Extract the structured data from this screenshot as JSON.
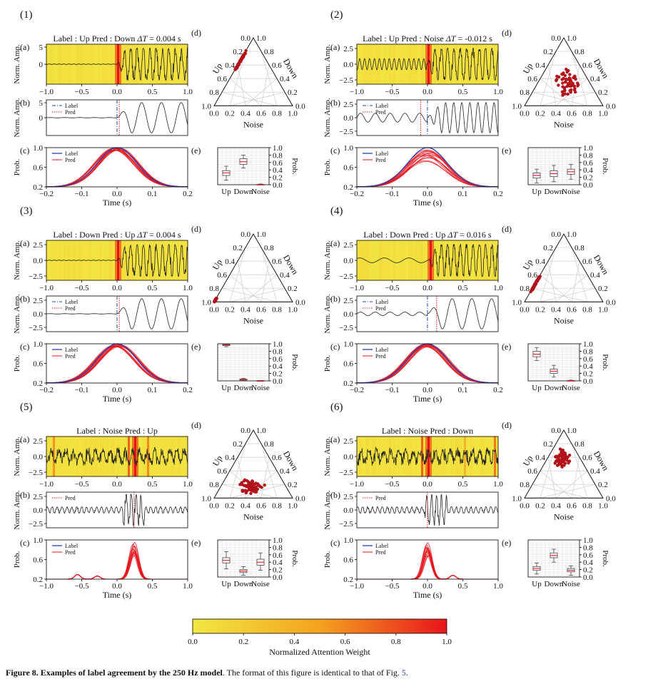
{
  "caption": {
    "bold": "Figure 8.  Examples of label agreement by the 250 Hz model",
    "rest": ". The format of this figure is identical to that of Fig. ",
    "ref": "5",
    "end": "."
  },
  "colorbar": {
    "label": "Normalized Attention Weight",
    "ticks": [
      "0.0",
      "0.2",
      "0.4",
      "0.6",
      "0.8",
      "1.0"
    ],
    "colors": [
      "#f2e842",
      "#f4a21f",
      "#e8141c"
    ]
  },
  "labels": {
    "norm_amp": "Norm. Amp.",
    "prob": "Prob.",
    "time": "Time (s)",
    "up": "Up",
    "down": "Down",
    "noise": "Noise",
    "label": "Label",
    "pred": "Pred"
  },
  "tern_ticks": [
    "0.0",
    "0.2",
    "0.4",
    "0.6",
    "0.8",
    "1.0"
  ],
  "box_ticks": [
    "0.0",
    "0.2",
    "0.4",
    "0.6",
    "0.8",
    "1.0"
  ],
  "chart_data": [
    {
      "id": "(1)",
      "type": "composite",
      "title": "Label : Up  Pred : Down  ",
      "dt_label": "ΔT",
      "dt_value": " = 0.004 s",
      "a": {
        "xlim": [
          -1.0,
          1.0
        ],
        "xticks": [
          "−1.0",
          "−0.5",
          "0.0",
          "0.5",
          "1.0"
        ],
        "yticks": [
          "5",
          "0"
        ],
        "ylim": [
          -5,
          5
        ]
      },
      "b": {
        "yticks": [
          "5",
          "0"
        ],
        "label_t": 0.0,
        "pred_t": 0.004
      },
      "c": {
        "xlim": [
          -0.2,
          0.2
        ],
        "xticks": [
          "−0.2",
          "−0.1",
          "0.0",
          "0.1",
          "0.2"
        ],
        "yticks": [
          "1.0",
          "0.8",
          "0.6",
          "0.4",
          "0.2",
          "0.0"
        ]
      },
      "legend_b": true,
      "legend_c": true,
      "e": {
        "Up": {
          "q1": 0.25,
          "med": 0.32,
          "q3": 0.38,
          "lo": 0.12,
          "hi": 0.5
        },
        "Down": {
          "q1": 0.55,
          "med": 0.62,
          "q3": 0.7,
          "lo": 0.45,
          "hi": 0.8
        },
        "Noise": {
          "q1": 0.0,
          "med": 0.005,
          "q3": 0.01,
          "lo": 0.0,
          "hi": 0.02
        }
      }
    },
    {
      "id": "(2)",
      "type": "composite",
      "title": "Label : Up  Pred : Noise  ",
      "dt_label": "ΔT",
      "dt_value": " = -0.012 s",
      "a": {
        "xlim": [
          -1.0,
          1.0
        ],
        "xticks": [
          "−1.0",
          "−0.5",
          "0.0",
          "0.5",
          "1.0"
        ],
        "yticks": [
          "2.5",
          "0.0",
          "−2.5"
        ],
        "ylim": [
          -4,
          4
        ]
      },
      "b": {
        "yticks": [
          "2.5",
          "0.0",
          "−2.5"
        ],
        "label_t": 0.0,
        "pred_t": -0.012
      },
      "c": {
        "xlim": [
          -0.2,
          0.2
        ],
        "xticks": [
          "−0.2",
          "−0.1",
          "0.0",
          "0.1",
          "0.2"
        ],
        "yticks": [
          "1.0",
          "0.8",
          "0.6",
          "0.4",
          "0.2",
          "0.0"
        ]
      },
      "legend_b": true,
      "legend_c": true,
      "e": {
        "Up": {
          "q1": 0.18,
          "med": 0.25,
          "q3": 0.32,
          "lo": 0.05,
          "hi": 0.42
        },
        "Down": {
          "q1": 0.22,
          "med": 0.3,
          "q3": 0.38,
          "lo": 0.08,
          "hi": 0.52
        },
        "Noise": {
          "q1": 0.28,
          "med": 0.35,
          "q3": 0.42,
          "lo": 0.15,
          "hi": 0.55
        }
      }
    },
    {
      "id": "(3)",
      "type": "composite",
      "title": "Label : Down  Pred : Up  ",
      "dt_label": "ΔT",
      "dt_value": " = 0.004 s",
      "a": {
        "xlim": [
          -1.0,
          1.0
        ],
        "xticks": [
          "−1.0",
          "−0.5",
          "0.0",
          "0.5",
          "1.0"
        ],
        "yticks": [
          "2.5",
          "0.0",
          "−2.5"
        ],
        "ylim": [
          -4,
          4
        ]
      },
      "b": {
        "yticks": [
          "2.5",
          "0.0",
          "−2.5"
        ],
        "label_t": 0.0,
        "pred_t": 0.004
      },
      "c": {
        "xlim": [
          -0.2,
          0.2
        ],
        "xticks": [
          "−0.2",
          "−0.1",
          "0.0",
          "0.1",
          "0.2"
        ],
        "yticks": [
          "1.0",
          "0.8",
          "0.6",
          "0.4",
          "0.2",
          "0.0"
        ]
      },
      "legend_b": true,
      "legend_c": true,
      "e": {
        "Up": {
          "q1": 0.95,
          "med": 0.97,
          "q3": 0.99,
          "lo": 0.92,
          "hi": 1.0
        },
        "Down": {
          "q1": 0.02,
          "med": 0.03,
          "q3": 0.05,
          "lo": 0.0,
          "hi": 0.07
        },
        "Noise": {
          "q1": 0.0,
          "med": 0.003,
          "q3": 0.006,
          "lo": 0.0,
          "hi": 0.01
        }
      }
    },
    {
      "id": "(4)",
      "type": "composite",
      "title": "Label : Down  Pred : Up  ",
      "dt_label": "ΔT",
      "dt_value": " = 0.016 s",
      "a": {
        "xlim": [
          -1.0,
          1.0
        ],
        "xticks": [
          "−1.0",
          "−0.5",
          "0.0",
          "0.5",
          "1.0"
        ],
        "yticks": [
          "2.5",
          "0.0",
          "−2.5"
        ],
        "ylim": [
          -4,
          4
        ]
      },
      "b": {
        "yticks": [
          "2.5",
          "0.0",
          "−2.5"
        ],
        "label_t": 0.0,
        "pred_t": 0.016
      },
      "c": {
        "xlim": [
          -0.2,
          0.2
        ],
        "xticks": [
          "−0.2",
          "−0.1",
          "0.0",
          "0.1",
          "0.2"
        ],
        "yticks": [
          "1.0",
          "0.8",
          "0.6",
          "0.4",
          "0.2",
          "0.0"
        ]
      },
      "legend_b": true,
      "legend_c": true,
      "e": {
        "Up": {
          "q1": 0.65,
          "med": 0.72,
          "q3": 0.8,
          "lo": 0.55,
          "hi": 0.9
        },
        "Down": {
          "q1": 0.2,
          "med": 0.26,
          "q3": 0.32,
          "lo": 0.1,
          "hi": 0.42
        },
        "Noise": {
          "q1": 0.0,
          "med": 0.005,
          "q3": 0.01,
          "lo": 0.0,
          "hi": 0.02
        }
      }
    },
    {
      "id": "(5)",
      "type": "composite",
      "title": "Label : Noise  Pred : Up",
      "dt_label": "",
      "dt_value": "",
      "a": {
        "xlim": [
          -1.0,
          1.0
        ],
        "xticks": [
          "−1.0",
          "−0.5",
          "0.0",
          "0.5",
          "1.0"
        ],
        "yticks": [
          "2.5",
          "0.0",
          "−2.5"
        ],
        "ylim": [
          -4,
          4
        ]
      },
      "b": {
        "yticks": [
          "2.5",
          "0.0",
          "−2.5"
        ],
        "label_t": null,
        "pred_t": 0.25
      },
      "c": {
        "xlim": [
          -1.0,
          1.0
        ],
        "xticks": [
          "−1.0",
          "−0.5",
          "0.0",
          "0.5",
          "1.0"
        ],
        "yticks": [
          "1.0",
          "0.8",
          "0.6",
          "0.4",
          "0.2",
          "0.0"
        ]
      },
      "legend_b": false,
      "legend_c": true,
      "e": {
        "Up": {
          "q1": 0.38,
          "med": 0.45,
          "q3": 0.52,
          "lo": 0.22,
          "hi": 0.68
        },
        "Down": {
          "q1": 0.12,
          "med": 0.16,
          "q3": 0.2,
          "lo": 0.05,
          "hi": 0.28
        },
        "Noise": {
          "q1": 0.32,
          "med": 0.4,
          "q3": 0.48,
          "lo": 0.18,
          "hi": 0.65
        }
      }
    },
    {
      "id": "(6)",
      "type": "composite",
      "title": "Label : Noise  Pred : Down",
      "dt_label": "",
      "dt_value": "",
      "a": {
        "xlim": [
          -1.0,
          1.0
        ],
        "xticks": [
          "−1.0",
          "−0.5",
          "0.0",
          "0.5",
          "1.0"
        ],
        "yticks": [
          "2.5",
          "0.0",
          "−2.5"
        ],
        "ylim": [
          -4,
          4
        ]
      },
      "b": {
        "yticks": [
          "2.5",
          "0.0",
          "−2.5"
        ],
        "label_t": null,
        "pred_t": 0.0
      },
      "c": {
        "xlim": [
          -1.0,
          1.0
        ],
        "xticks": [
          "−1.0",
          "−0.5",
          "0.0",
          "0.5",
          "1.0"
        ],
        "yticks": [
          "1.0",
          "0.8",
          "0.6",
          "0.4",
          "0.2",
          "0.0"
        ]
      },
      "legend_b": false,
      "legend_c": true,
      "e": {
        "Up": {
          "q1": 0.18,
          "med": 0.23,
          "q3": 0.28,
          "lo": 0.08,
          "hi": 0.38
        },
        "Down": {
          "q1": 0.52,
          "med": 0.58,
          "q3": 0.65,
          "lo": 0.4,
          "hi": 0.75
        },
        "Noise": {
          "q1": 0.14,
          "med": 0.18,
          "q3": 0.23,
          "lo": 0.05,
          "hi": 0.3
        }
      }
    }
  ]
}
